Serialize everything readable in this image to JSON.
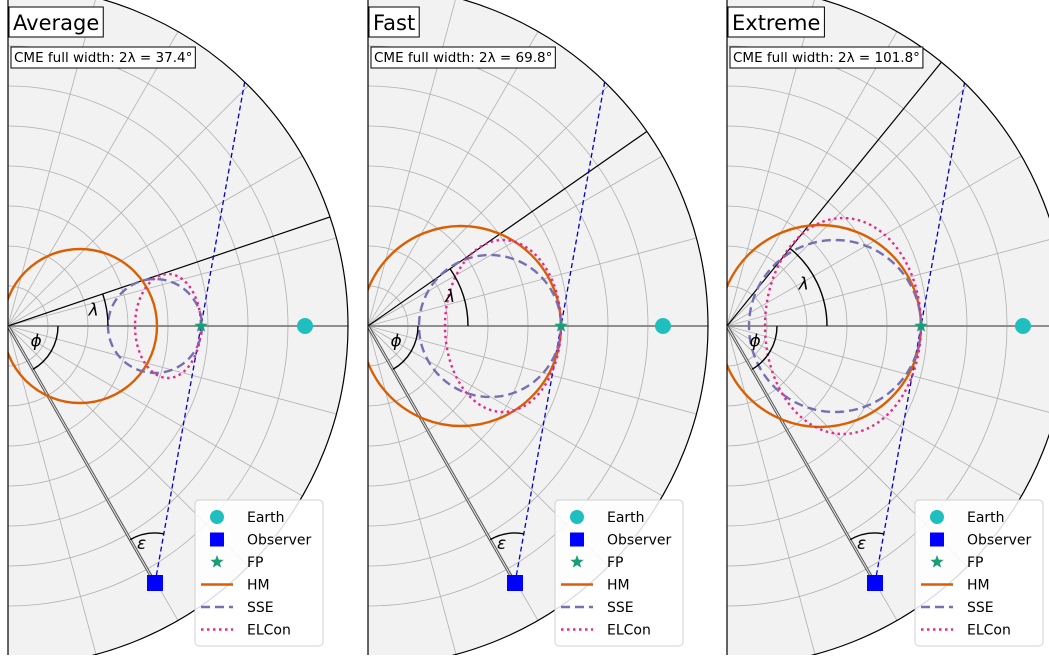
{
  "panels": [
    {
      "title": "Average",
      "width_label": "CME full width: 2λ = 37.4°",
      "symbols": {
        "phi": "ϕ",
        "lambda": "λ",
        "epsilon": "ε"
      }
    },
    {
      "title": "Fast",
      "width_label": "CME full width: 2λ = 69.8°",
      "symbols": {
        "phi": "ϕ",
        "lambda": "λ",
        "epsilon": "ε"
      }
    },
    {
      "title": "Extreme",
      "width_label": "CME full width: 2λ = 101.8°",
      "symbols": {
        "phi": "ϕ",
        "lambda": "λ",
        "epsilon": "ε"
      }
    }
  ],
  "legend": [
    {
      "label": "Earth",
      "marker": "circle",
      "color": "#1fbfbf"
    },
    {
      "label": "Observer",
      "marker": "square",
      "color": "#0000ff"
    },
    {
      "label": "FP",
      "marker": "star",
      "color": "#1a9e77"
    },
    {
      "label": "HM",
      "marker": "solid-line",
      "color": "#d95f02"
    },
    {
      "label": "SSE",
      "marker": "dashed-line",
      "color": "#7570b3"
    },
    {
      "label": "ELCon",
      "marker": "dotted-line",
      "color": "#e7298a"
    }
  ],
  "colors": {
    "earth": "#1fbfbf",
    "observer": "#0000ff",
    "fp": "#1a9e77",
    "hm": "#d95f02",
    "sse": "#7570b3",
    "elcon": "#e7298a",
    "sightline": "#0000cc",
    "plot_bg": "#f2f2f2",
    "grid": "#b0b0b0"
  }
}
